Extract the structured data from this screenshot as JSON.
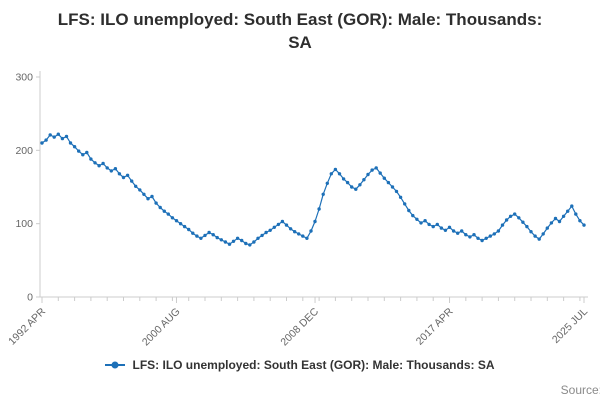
{
  "header": {
    "title_line1": "LFS: ILO unemployed: South East (GOR): Male: Thousands:",
    "title_line2": "SA"
  },
  "legend": {
    "label": "LFS: ILO unemployed: South East (GOR): Male: Thousands: SA"
  },
  "footer": {
    "source_label": "Source:"
  },
  "chart_data": {
    "type": "line",
    "title": "LFS: ILO unemployed: South East (GOR): Male: Thousands: SA",
    "series_name": "LFS: ILO unemployed: South East (GOR): Male: Thousands: SA",
    "units": "Thousands",
    "frequency": "quarterly",
    "x_start_label": "1992 APR",
    "x_end_label": "2025 JUL",
    "ylim": [
      0,
      300
    ],
    "yticks": [
      0,
      100,
      200,
      300
    ],
    "grid": false,
    "legend_position": "bottom",
    "line_color": "#1d70b8",
    "axis_color": "#cccccc",
    "tick_label_color": "#666666",
    "x_tick_labels": [
      {
        "label": "1992 APR",
        "index": 0
      },
      {
        "label": "2000 AUG",
        "index": 33
      },
      {
        "label": "2008 DEC",
        "index": 67
      },
      {
        "label": "2017 APR",
        "index": 100
      },
      {
        "label": "2025 JUL",
        "index": 133
      }
    ],
    "values": [
      210,
      214,
      221,
      218,
      222,
      216,
      219,
      210,
      205,
      199,
      194,
      197,
      188,
      183,
      179,
      182,
      176,
      172,
      175,
      168,
      163,
      166,
      158,
      151,
      146,
      140,
      134,
      137,
      128,
      122,
      117,
      113,
      108,
      104,
      100,
      96,
      92,
      87,
      83,
      80,
      84,
      88,
      85,
      81,
      78,
      75,
      72,
      76,
      80,
      77,
      73,
      71,
      75,
      80,
      84,
      88,
      91,
      95,
      99,
      103,
      98,
      93,
      89,
      86,
      83,
      80,
      90,
      103,
      120,
      140,
      155,
      168,
      174,
      168,
      161,
      156,
      150,
      147,
      153,
      160,
      167,
      173,
      176,
      169,
      162,
      156,
      150,
      144,
      136,
      127,
      118,
      111,
      106,
      101,
      104,
      99,
      96,
      99,
      94,
      91,
      95,
      90,
      87,
      90,
      85,
      82,
      85,
      80,
      77,
      80,
      83,
      86,
      90,
      98,
      105,
      110,
      113,
      108,
      102,
      96,
      89,
      83,
      79,
      86,
      94,
      101,
      107,
      103,
      110,
      117,
      124,
      113,
      104,
      98
    ]
  }
}
